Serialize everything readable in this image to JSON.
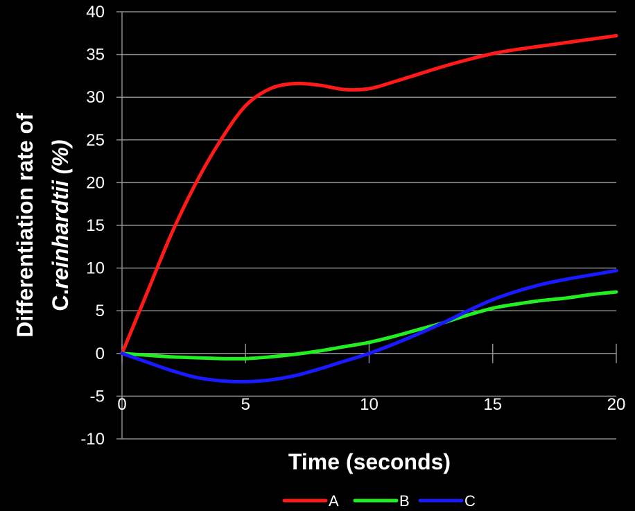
{
  "chart_data": {
    "type": "line",
    "xlabel": "Time (seconds)",
    "ylabel_line1": "Differentiation rate of",
    "ylabel_line2_regular": "C.",
    "ylabel_line2_italic": "reinhardtii (%)",
    "xlim": [
      0,
      20
    ],
    "ylim": [
      -10,
      40
    ],
    "x_ticks": [
      "0",
      "5",
      "10",
      "15",
      "20"
    ],
    "y_ticks": [
      "40",
      "35",
      "30",
      "25",
      "20",
      "15",
      "10",
      "5",
      "0",
      "-5",
      "-10"
    ],
    "grid": "horizontal",
    "legend_position": "bottom",
    "series": [
      {
        "name": "A",
        "color": "#ff1a1a",
        "x": [
          0,
          1,
          2,
          3,
          4,
          5,
          6,
          7,
          8,
          9,
          10,
          11,
          12,
          13,
          14,
          15,
          16,
          17,
          18,
          19,
          20
        ],
        "y": [
          0,
          7,
          14,
          20,
          25,
          29,
          31,
          31.6,
          31.4,
          30.9,
          31,
          31.8,
          32.7,
          33.6,
          34.4,
          35.1,
          35.6,
          36,
          36.4,
          36.8,
          37.2
        ]
      },
      {
        "name": "B",
        "color": "#22ee22",
        "x": [
          0,
          1,
          2,
          3,
          4,
          5,
          6,
          7,
          8,
          9,
          10,
          11,
          12,
          13,
          14,
          15,
          16,
          17,
          18,
          19,
          20
        ],
        "y": [
          0,
          -0.2,
          -0.4,
          -0.5,
          -0.6,
          -0.6,
          -0.4,
          -0.1,
          0.3,
          0.8,
          1.3,
          2,
          2.8,
          3.6,
          4.5,
          5.3,
          5.8,
          6.2,
          6.5,
          6.9,
          7.2
        ]
      },
      {
        "name": "C",
        "color": "#1a1aff",
        "x": [
          0,
          1,
          2,
          3,
          4,
          5,
          6,
          7,
          8,
          9,
          10,
          11,
          12,
          13,
          14,
          15,
          16,
          17,
          18,
          19,
          20
        ],
        "y": [
          0,
          -1,
          -2,
          -2.8,
          -3.2,
          -3.3,
          -3.1,
          -2.6,
          -1.8,
          -0.9,
          0,
          1.1,
          2.3,
          3.6,
          5,
          6.3,
          7.3,
          8.1,
          8.7,
          9.2,
          9.7
        ]
      }
    ]
  }
}
